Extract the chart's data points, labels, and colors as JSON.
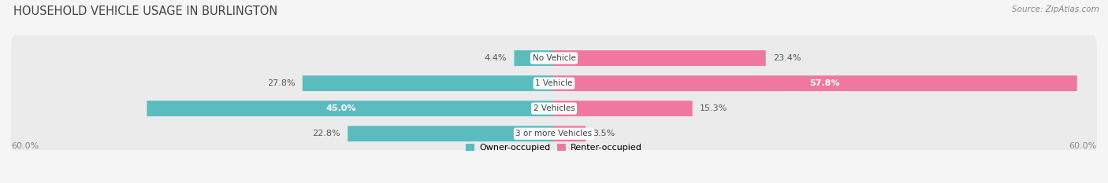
{
  "title": "HOUSEHOLD VEHICLE USAGE IN BURLINGTON",
  "source": "Source: ZipAtlas.com",
  "categories": [
    "No Vehicle",
    "1 Vehicle",
    "2 Vehicles",
    "3 or more Vehicles"
  ],
  "owner_values": [
    4.4,
    27.8,
    45.0,
    22.8
  ],
  "renter_values": [
    23.4,
    57.8,
    15.3,
    3.5
  ],
  "owner_color": "#5bbcbf",
  "renter_color": "#f078a0",
  "axis_max": 60.0,
  "axis_label": "60.0%",
  "bg_row_color": "#ebebeb",
  "legend_owner": "Owner-occupied",
  "legend_renter": "Renter-occupied",
  "title_fontsize": 10.5,
  "source_fontsize": 7.5,
  "label_fontsize": 8,
  "cat_fontsize": 7.5,
  "owner_label_colors": [
    "#555555",
    "#555555",
    "#ffffff",
    "#555555"
  ],
  "renter_label_colors": [
    "#555555",
    "#ffffff",
    "#555555",
    "#555555"
  ]
}
